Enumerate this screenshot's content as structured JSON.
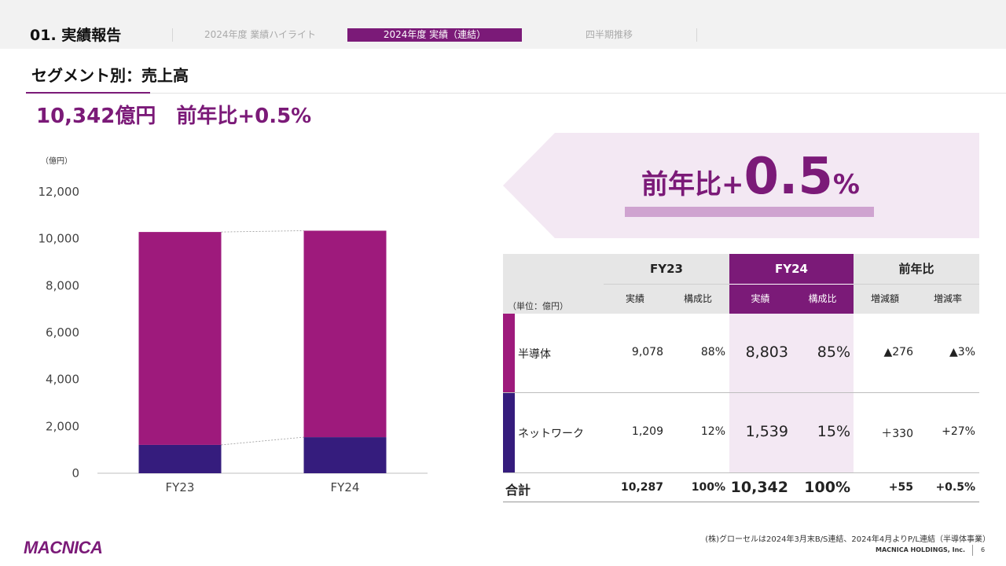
{
  "header": {
    "section_title": "01. 実績報告",
    "tabs": [
      {
        "label": "2024年度 業績ハイライト",
        "active": false
      },
      {
        "label": "2024年度 実績（連結）",
        "active": true
      },
      {
        "label": "四半期推移",
        "active": false
      }
    ]
  },
  "slide": {
    "title": "セグメント別：売上高",
    "headline": "10,342億円　前年比+0.5%"
  },
  "chart_data": {
    "type": "bar",
    "stacked": true,
    "unit_label": "（億円）",
    "categories": [
      "FY23",
      "FY24"
    ],
    "series": [
      {
        "name": "ネットワーク",
        "color": "#351c7d",
        "values": [
          1209,
          1539
        ]
      },
      {
        "name": "半導体",
        "color": "#9e1a7c",
        "values": [
          9078,
          8803
        ]
      }
    ],
    "ylim": [
      0,
      12000
    ],
    "yticks": [
      "0",
      "2,000",
      "4,000",
      "6,000",
      "8,000",
      "10,000",
      "12,000"
    ],
    "connector_lines": true,
    "grid": false
  },
  "yoy_callout": {
    "prefix": "前年比+",
    "value": "0.5",
    "suffix": "%"
  },
  "table": {
    "unit_label": "（単位：億円）",
    "groups": [
      "FY23",
      "FY24",
      "前年比"
    ],
    "subheaders": [
      "実績",
      "構成比",
      "実績",
      "構成比",
      "増減額",
      "増減率"
    ],
    "rows": [
      {
        "segment": "半導体",
        "color": "#9e1a7c",
        "fy23_actual": "9,078",
        "fy23_ratio": "88%",
        "fy24_actual": "8,803",
        "fy24_ratio": "85%",
        "diff": "▲276",
        "rate": "▲3%"
      },
      {
        "segment": "ネットワーク",
        "color": "#351c7d",
        "fy23_actual": "1,209",
        "fy23_ratio": "12%",
        "fy24_actual": "1,539",
        "fy24_ratio": "15%",
        "diff": "＋330",
        "rate": "+27%"
      }
    ],
    "total": {
      "label": "合計",
      "fy23_actual": "10,287",
      "fy23_ratio": "100%",
      "fy24_actual": "10,342",
      "fy24_ratio": "100%",
      "diff": "+55",
      "rate": "+0.5%"
    }
  },
  "footer": {
    "note": "(株)グローセルは2024年3月末B/S連結、2024年4月よりP/L連結（半導体事業）",
    "company": "MACNICA HOLDINGS, Inc.",
    "page": "6",
    "logo": "MACNICA"
  },
  "colors": {
    "brand_purple": "#7b1a78",
    "semiconductor": "#9e1a7c",
    "network": "#351c7d",
    "highlight_light": "#f3e8f3"
  }
}
